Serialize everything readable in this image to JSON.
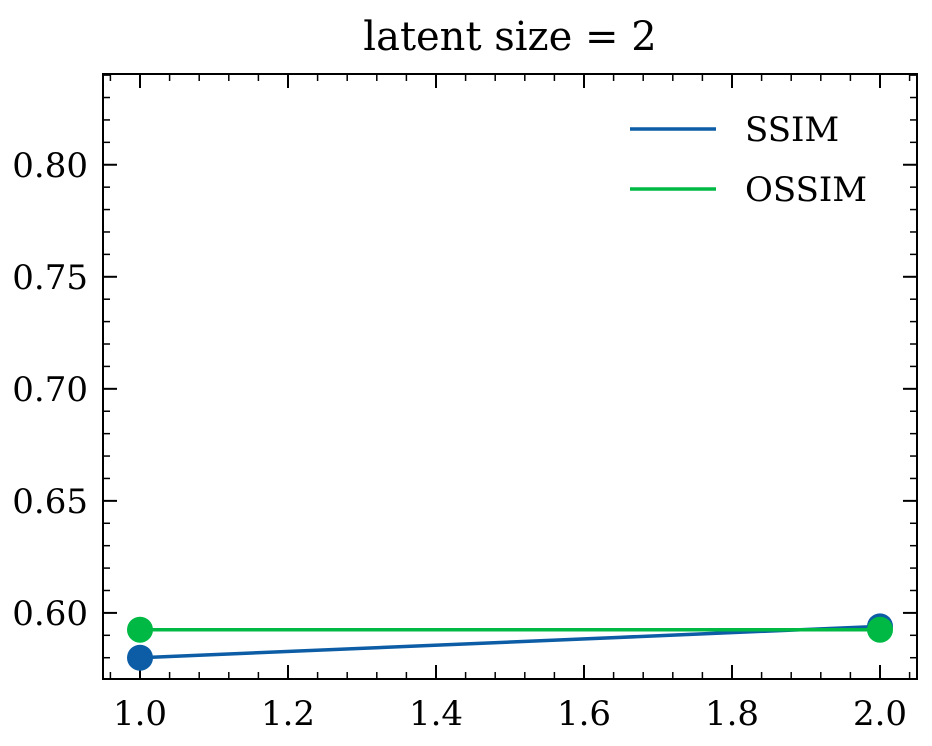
{
  "chart_data": {
    "type": "line",
    "title": "latent size = 2",
    "xlabel": "",
    "ylabel": "",
    "x": [
      1.0,
      2.0
    ],
    "xlim": [
      0.95,
      2.05
    ],
    "ylim": [
      0.5705,
      0.8405
    ],
    "x_ticks": [
      1.0,
      1.2,
      1.4,
      1.6,
      1.8,
      2.0
    ],
    "x_tick_labels": [
      "1.0",
      "1.2",
      "1.4",
      "1.6",
      "1.8",
      "2.0"
    ],
    "y_ticks": [
      0.6,
      0.65,
      0.7,
      0.75,
      0.8
    ],
    "y_tick_labels": [
      "0.60",
      "0.65",
      "0.70",
      "0.75",
      "0.80"
    ],
    "grid": false,
    "legend_position": "top-right",
    "series": [
      {
        "name": "SSIM",
        "values": [
          0.58,
          0.594
        ],
        "color": "#0C5DA5"
      },
      {
        "name": "OSSIM",
        "values": [
          0.5925,
          0.5925
        ],
        "color": "#00B945"
      }
    ]
  }
}
